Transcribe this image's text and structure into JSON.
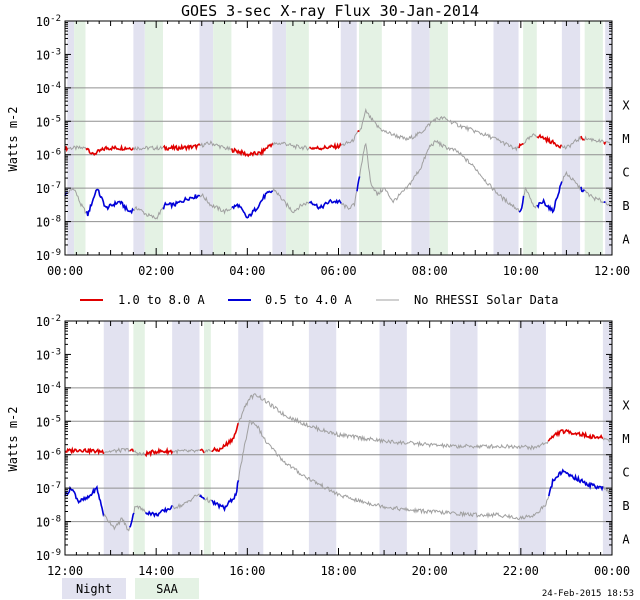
{
  "title": "GOES 3-sec X-ray Flux   30-Jan-2014",
  "timestamp": "24-Feb-2015 18:53",
  "colors": {
    "long": "#e00000",
    "short": "#0000d8",
    "norhessi": "#a0a0a0",
    "night": "#e2e2f0",
    "saa": "#e4f2e4",
    "grid": "#909090"
  },
  "legend": {
    "items": [
      {
        "label": "1.0 to 8.0 A",
        "color": "#e00000",
        "width": 2
      },
      {
        "label": "0.5 to 4.0 A",
        "color": "#0000d8",
        "width": 2
      },
      {
        "label": "No RHESSI Solar Data",
        "color": "#a0a0a0",
        "width": 1
      }
    ]
  },
  "bottom_legend": {
    "night": "Night",
    "saa": "SAA"
  },
  "chart_data": [
    {
      "type": "line",
      "panel": "top",
      "title": "GOES 3-sec X-ray Flux   30-Jan-2014",
      "ylabel": "Watts m-2",
      "yscale": "log",
      "ylim_exp": [
        -9,
        -2
      ],
      "xlim_hours": [
        0,
        12
      ],
      "xtick_labels": [
        "00:00",
        "02:00",
        "04:00",
        "06:00",
        "08:00",
        "10:00",
        "12:00"
      ],
      "class_labels": [
        {
          "label": "A",
          "exp": -8
        },
        {
          "label": "B",
          "exp": -7
        },
        {
          "label": "C",
          "exp": -6
        },
        {
          "label": "M",
          "exp": -5
        },
        {
          "label": "X",
          "exp": -4
        }
      ],
      "night": [
        [
          0.05,
          0.2
        ],
        [
          1.5,
          1.75
        ],
        [
          2.95,
          3.25
        ],
        [
          4.55,
          4.85
        ],
        [
          6.05,
          6.4
        ],
        [
          7.6,
          8.0
        ],
        [
          9.4,
          9.95
        ],
        [
          10.9,
          11.3
        ],
        [
          11.85,
          12.0
        ]
      ],
      "saa": [
        [
          0.2,
          0.45
        ],
        [
          1.75,
          2.15
        ],
        [
          3.25,
          3.65
        ],
        [
          4.85,
          5.35
        ],
        [
          6.45,
          6.95
        ],
        [
          8.0,
          8.4
        ],
        [
          10.05,
          10.35
        ],
        [
          11.4,
          11.8
        ]
      ],
      "series": [
        {
          "name": "1.0 to 8.0 A",
          "color_key": "long",
          "x": [
            0.0,
            0.5,
            0.6,
            0.9,
            1.0,
            1.3,
            1.6,
            2.0,
            2.5,
            2.9,
            3.2,
            3.5,
            3.8,
            4.0,
            4.3,
            4.5,
            4.8,
            5.0,
            5.3,
            5.6,
            6.0,
            6.3,
            6.5,
            6.6,
            6.7,
            6.85,
            7.0,
            7.3,
            7.5,
            7.8,
            8.1,
            8.3,
            8.6,
            9.0,
            9.4,
            9.7,
            9.9,
            10.1,
            10.3,
            10.5,
            10.8,
            11.0,
            11.3,
            11.6,
            12.0
          ],
          "y_exp": [
            -5.8,
            -5.8,
            -6.0,
            -5.8,
            -5.8,
            -5.8,
            -5.8,
            -5.8,
            -5.8,
            -5.75,
            -5.65,
            -5.8,
            -5.9,
            -6.0,
            -5.95,
            -5.7,
            -5.65,
            -5.75,
            -5.8,
            -5.8,
            -5.75,
            -5.6,
            -5.2,
            -4.7,
            -4.9,
            -5.15,
            -5.3,
            -5.45,
            -5.55,
            -5.35,
            -4.95,
            -4.9,
            -5.1,
            -5.3,
            -5.5,
            -5.7,
            -5.85,
            -5.6,
            -5.4,
            -5.5,
            -5.7,
            -5.8,
            -5.5,
            -5.55,
            -5.7
          ]
        },
        {
          "name": "0.5 to 4.0 A",
          "color_key": "short",
          "x": [
            0.0,
            0.2,
            0.35,
            0.5,
            0.7,
            0.9,
            1.2,
            1.4,
            1.6,
            1.8,
            2.0,
            2.2,
            2.4,
            2.7,
            3.0,
            3.2,
            3.5,
            3.8,
            4.0,
            4.2,
            4.4,
            4.6,
            4.8,
            5.0,
            5.2,
            5.4,
            5.6,
            5.8,
            6.0,
            6.2,
            6.35,
            6.5,
            6.6,
            6.7,
            6.85,
            7.0,
            7.2,
            7.5,
            7.8,
            8.0,
            8.15,
            8.3,
            8.6,
            9.0,
            9.3,
            9.6,
            9.8,
            10.0,
            10.1,
            10.3,
            10.5,
            10.7,
            10.9,
            11.0,
            11.3,
            11.6,
            12.0
          ],
          "y_exp": [
            -7.2,
            -7.0,
            -7.5,
            -7.8,
            -7.0,
            -7.6,
            -7.4,
            -7.7,
            -7.6,
            -7.8,
            -7.9,
            -7.5,
            -7.5,
            -7.3,
            -7.2,
            -7.5,
            -7.7,
            -7.5,
            -7.9,
            -7.6,
            -7.2,
            -7.05,
            -7.4,
            -7.7,
            -7.5,
            -7.4,
            -7.6,
            -7.4,
            -7.4,
            -7.6,
            -7.5,
            -6.3,
            -5.65,
            -6.8,
            -7.2,
            -7.0,
            -7.4,
            -7.0,
            -6.4,
            -5.75,
            -5.6,
            -5.75,
            -5.9,
            -6.4,
            -6.9,
            -7.3,
            -7.5,
            -7.7,
            -7.0,
            -7.6,
            -7.4,
            -7.7,
            -6.8,
            -6.55,
            -7.0,
            -7.3,
            -7.5
          ]
        }
      ]
    },
    {
      "type": "line",
      "panel": "bottom",
      "ylabel": "Watts m-2",
      "yscale": "log",
      "ylim_exp": [
        -9,
        -2
      ],
      "xlim_hours": [
        12,
        24
      ],
      "xtick_labels": [
        "12:00",
        "14:00",
        "16:00",
        "18:00",
        "20:00",
        "22:00",
        "00:00"
      ],
      "class_labels": [
        {
          "label": "A",
          "exp": -8
        },
        {
          "label": "B",
          "exp": -7
        },
        {
          "label": "C",
          "exp": -6
        },
        {
          "label": "M",
          "exp": -5
        },
        {
          "label": "X",
          "exp": -4
        }
      ],
      "night": [
        [
          12.85,
          13.4
        ],
        [
          14.35,
          14.95
        ],
        [
          15.8,
          16.35
        ],
        [
          17.35,
          17.95
        ],
        [
          18.9,
          19.5
        ],
        [
          20.45,
          21.05
        ],
        [
          21.95,
          22.55
        ],
        [
          23.8,
          24.0
        ]
      ],
      "saa": [
        [
          13.5,
          13.75
        ],
        [
          15.05,
          15.2
        ]
      ],
      "series": [
        {
          "name": "1.0 to 8.0 A",
          "color_key": "long",
          "x": [
            12.0,
            12.3,
            12.7,
            13.0,
            13.4,
            13.7,
            14.0,
            14.5,
            15.0,
            15.4,
            15.7,
            15.9,
            16.05,
            16.2,
            16.4,
            16.8,
            17.2,
            17.6,
            18.0,
            18.5,
            19.0,
            19.5,
            20.0,
            20.5,
            21.0,
            21.5,
            22.0,
            22.3,
            22.6,
            22.75,
            22.9,
            23.2,
            23.5,
            23.8,
            24.0
          ],
          "y_exp": [
            -5.9,
            -5.85,
            -5.9,
            -5.9,
            -5.85,
            -6.0,
            -5.9,
            -5.9,
            -5.9,
            -5.85,
            -5.5,
            -4.7,
            -4.3,
            -4.2,
            -4.4,
            -4.8,
            -5.05,
            -5.25,
            -5.4,
            -5.5,
            -5.6,
            -5.65,
            -5.7,
            -5.75,
            -5.75,
            -5.75,
            -5.75,
            -5.8,
            -5.6,
            -5.4,
            -5.3,
            -5.35,
            -5.45,
            -5.5,
            -5.6
          ]
        },
        {
          "name": "0.5 to 4.0 A",
          "color_key": "short",
          "x": [
            12.0,
            12.15,
            12.3,
            12.5,
            12.7,
            12.85,
            13.1,
            13.25,
            13.4,
            13.55,
            13.75,
            14.0,
            14.3,
            14.6,
            14.9,
            15.2,
            15.5,
            15.75,
            15.9,
            16.05,
            16.2,
            16.4,
            16.8,
            17.2,
            17.6,
            18.0,
            18.5,
            19.0,
            19.5,
            20.0,
            20.5,
            21.0,
            21.5,
            22.0,
            22.3,
            22.55,
            22.7,
            22.9,
            23.2,
            23.5,
            23.8,
            24.0
          ],
          "y_exp": [
            -7.2,
            -7.0,
            -7.4,
            -7.3,
            -7.0,
            -7.8,
            -8.2,
            -7.9,
            -8.3,
            -7.5,
            -7.7,
            -7.8,
            -7.6,
            -7.5,
            -7.2,
            -7.4,
            -7.6,
            -7.2,
            -6.0,
            -5.0,
            -5.1,
            -5.6,
            -6.2,
            -6.6,
            -6.9,
            -7.2,
            -7.4,
            -7.55,
            -7.65,
            -7.7,
            -7.75,
            -7.8,
            -7.8,
            -7.9,
            -7.8,
            -7.5,
            -6.8,
            -6.5,
            -6.7,
            -6.9,
            -7.0,
            -7.15
          ]
        }
      ]
    }
  ]
}
